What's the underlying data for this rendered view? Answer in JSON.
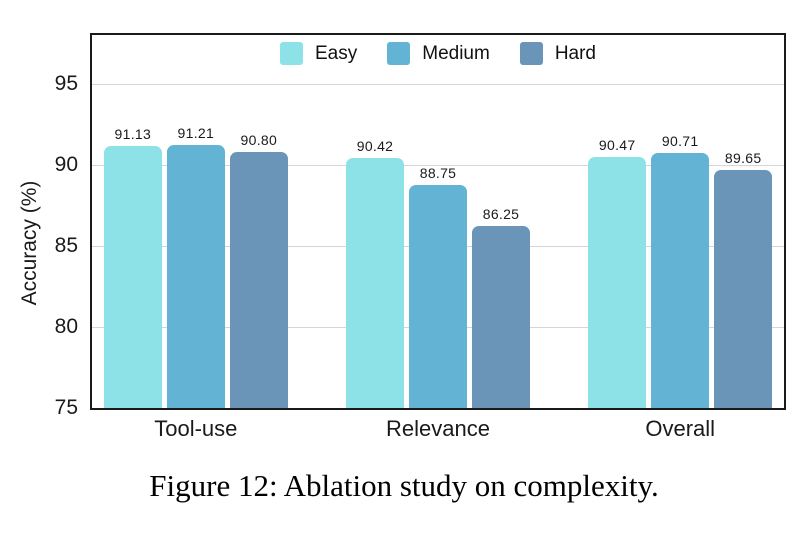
{
  "figure": {
    "caption": "Figure 12: Ablation study on complexity."
  },
  "chart_data": {
    "type": "bar",
    "title": "",
    "categories": [
      "Tool-use",
      "Relevance",
      "Overall"
    ],
    "series": [
      {
        "name": "Easy",
        "color": "#8DE2E8",
        "values": [
          91.13,
          90.42,
          90.47
        ]
      },
      {
        "name": "Medium",
        "color": "#62B3D4",
        "values": [
          91.21,
          88.75,
          90.71
        ]
      },
      {
        "name": "Hard",
        "color": "#6A94B8",
        "values": [
          90.8,
          86.25,
          89.65
        ]
      }
    ],
    "xlabel": "",
    "ylabel": "Accuracy (%)",
    "ylim": [
      75,
      98
    ],
    "yticks": [
      75,
      80,
      85,
      90,
      95
    ],
    "grid": "horizontal",
    "legend_position": "top-center-inside",
    "value_labels": true,
    "colors": {
      "frame": "#1a1a1a",
      "gridline": "#d6d6d6",
      "background": "#ffffff",
      "text": "#1a1a1a"
    }
  }
}
